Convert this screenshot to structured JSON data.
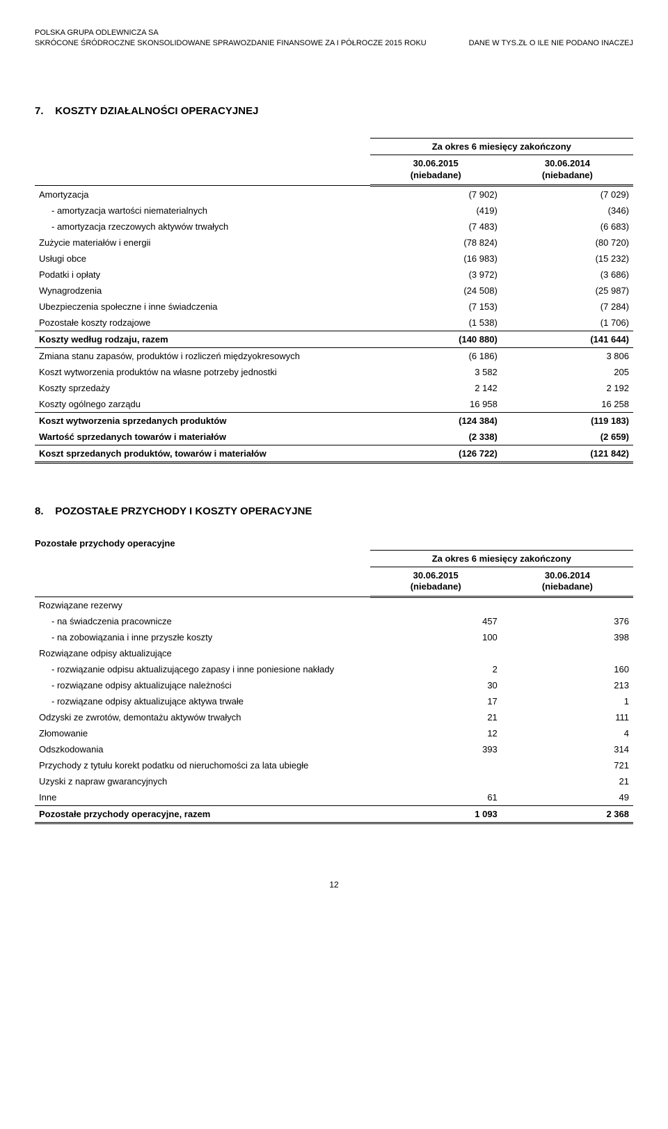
{
  "header": {
    "company": "POLSKA GRUPA ODLEWNICZA SA",
    "report_line": "SKRÓCONE ŚRÓDROCZNE SKONSOLIDOWANE SPRAWOZDANIE FINANSOWE ZA I PÓŁROCZE 2015 ROKU",
    "units": "DANE W TYS.ZŁ O ILE NIE PODANO INACZEJ"
  },
  "section1": {
    "number": "7.",
    "title": "KOSZTY DZIAŁALNOŚCI OPERACYJNEJ",
    "period_caption": "Za okres 6 miesięcy zakończony",
    "col1_date": "30.06.2015",
    "col1_note": "(niebadane)",
    "col2_date": "30.06.2014",
    "col2_note": "(niebadane)",
    "rows": [
      {
        "label": "Amortyzacja",
        "v1": "(7 902)",
        "v2": "(7 029)",
        "bold": false,
        "indent": 0
      },
      {
        "label": "- amortyzacja wartości niematerialnych",
        "v1": "(419)",
        "v2": "(346)",
        "bold": false,
        "indent": 1
      },
      {
        "label": "- amortyzacja rzeczowych aktywów trwałych",
        "v1": "(7 483)",
        "v2": "(6 683)",
        "bold": false,
        "indent": 1
      },
      {
        "label": "Zużycie materiałów i energii",
        "v1": "(78 824)",
        "v2": "(80 720)",
        "bold": false,
        "indent": 0
      },
      {
        "label": "Usługi obce",
        "v1": "(16 983)",
        "v2": "(15 232)",
        "bold": false,
        "indent": 0
      },
      {
        "label": "Podatki i opłaty",
        "v1": "(3 972)",
        "v2": "(3 686)",
        "bold": false,
        "indent": 0
      },
      {
        "label": "Wynagrodzenia",
        "v1": "(24 508)",
        "v2": "(25 987)",
        "bold": false,
        "indent": 0
      },
      {
        "label": "Ubezpieczenia społeczne i inne świadczenia",
        "v1": "(7 153)",
        "v2": "(7 284)",
        "bold": false,
        "indent": 0
      },
      {
        "label": "Pozostałe koszty rodzajowe",
        "v1": "(1 538)",
        "v2": "(1 706)",
        "bold": false,
        "indent": 0,
        "rule_below": true
      },
      {
        "label": "Koszty według rodzaju, razem",
        "v1": "(140 880)",
        "v2": "(141 644)",
        "bold": true,
        "indent": 0,
        "rule_below": true
      },
      {
        "label": "Zmiana stanu zapasów, produktów i rozliczeń międzyokresowych",
        "v1": "(6 186)",
        "v2": "3 806",
        "bold": false,
        "indent": 0
      },
      {
        "label": "Koszt wytworzenia produktów na własne potrzeby jednostki",
        "v1": "3 582",
        "v2": "205",
        "bold": false,
        "indent": 0
      },
      {
        "label": "Koszty sprzedaży",
        "v1": "2 142",
        "v2": "2 192",
        "bold": false,
        "indent": 0
      },
      {
        "label": "Koszty ogólnego zarządu",
        "v1": "16 958",
        "v2": "16 258",
        "bold": false,
        "indent": 0,
        "rule_below": true
      },
      {
        "label": "Koszt wytworzenia sprzedanych produktów",
        "v1": "(124 384)",
        "v2": "(119 183)",
        "bold": true,
        "indent": 0
      },
      {
        "label": "Wartość sprzedanych towarów i materiałów",
        "v1": "(2 338)",
        "v2": "(2 659)",
        "bold": true,
        "indent": 0,
        "rule_below": true
      },
      {
        "label": "Koszt sprzedanych produktów, towarów i materiałów",
        "v1": "(126 722)",
        "v2": "(121 842)",
        "bold": true,
        "indent": 0,
        "dbl_below": true
      }
    ]
  },
  "section2": {
    "number": "8.",
    "title": "POZOSTAŁE PRZYCHODY I KOSZTY OPERACYJNE",
    "subheading": "Pozostałe przychody operacyjne",
    "period_caption": "Za okres 6 miesięcy zakończony",
    "col1_date": "30.06.2015",
    "col1_note": "(niebadane)",
    "col2_date": "30.06.2014",
    "col2_note": "(niebadane)",
    "rows": [
      {
        "label": "Rozwiązane rezerwy",
        "v1": "",
        "v2": "",
        "bold": false,
        "indent": 0
      },
      {
        "label": "- na świadczenia pracownicze",
        "v1": "457",
        "v2": "376",
        "bold": false,
        "indent": 1
      },
      {
        "label": "- na zobowiązania i inne przyszłe koszty",
        "v1": "100",
        "v2": "398",
        "bold": false,
        "indent": 1
      },
      {
        "label": "Rozwiązane odpisy aktualizujące",
        "v1": "",
        "v2": "",
        "bold": false,
        "indent": 0
      },
      {
        "label": "- rozwiązanie odpisu aktualizującego zapasy i inne poniesione nakłady",
        "v1": "2",
        "v2": "160",
        "bold": false,
        "indent": 1
      },
      {
        "label": "- rozwiązane odpisy aktualizujące należności",
        "v1": "30",
        "v2": "213",
        "bold": false,
        "indent": 1
      },
      {
        "label": "- rozwiązane odpisy aktualizujące aktywa trwałe",
        "v1": "17",
        "v2": "1",
        "bold": false,
        "indent": 1
      },
      {
        "label": "Odzyski ze zwrotów, demontażu aktywów trwałych",
        "v1": "21",
        "v2": "111",
        "bold": false,
        "indent": 0
      },
      {
        "label": "Złomowanie",
        "v1": "12",
        "v2": "4",
        "bold": false,
        "indent": 0
      },
      {
        "label": "Odszkodowania",
        "v1": "393",
        "v2": "314",
        "bold": false,
        "indent": 0
      },
      {
        "label": "Przychody z tytułu korekt podatku od nieruchomości za lata ubiegłe",
        "v1": "",
        "v2": "721",
        "bold": false,
        "indent": 0
      },
      {
        "label": "Uzyski z napraw gwarancyjnych",
        "v1": "",
        "v2": "21",
        "bold": false,
        "indent": 0
      },
      {
        "label": "Inne",
        "v1": "61",
        "v2": "49",
        "bold": false,
        "indent": 0,
        "rule_below": true
      },
      {
        "label": "Pozostałe przychody operacyjne, razem",
        "v1": "1 093",
        "v2": "2 368",
        "bold": true,
        "indent": 0,
        "dbl_below": true
      }
    ]
  },
  "page_number": "12"
}
